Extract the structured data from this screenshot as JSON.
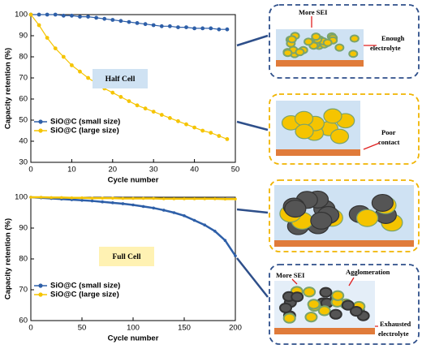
{
  "chart_data": [
    {
      "type": "line",
      "annotation": "Half Cell",
      "annotation_color": "#cfe2f3",
      "x_label": "Cycle number",
      "y_label": "Capacity retention (%)",
      "x": [
        0,
        2,
        4,
        6,
        8,
        10,
        12,
        14,
        16,
        18,
        20,
        22,
        24,
        26,
        28,
        30,
        32,
        34,
        36,
        38,
        40,
        42,
        44,
        46,
        48
      ],
      "series": [
        {
          "name": "SiO@C (small size)",
          "color": "#2e5fa8",
          "values": [
            100,
            100,
            100,
            100,
            99.5,
            99.5,
            99,
            99,
            98.5,
            98,
            97.5,
            97,
            96.5,
            96,
            95.5,
            95,
            94.5,
            94.5,
            94,
            94,
            93.5,
            93.5,
            93.5,
            93,
            93
          ]
        },
        {
          "name": "SiO@C (large size)",
          "color": "#f5c400",
          "values": [
            100,
            95,
            89,
            84,
            80,
            76,
            73,
            70,
            67.5,
            65,
            63,
            61,
            59,
            57,
            55.5,
            54,
            52.5,
            51,
            49.5,
            48,
            46.5,
            45,
            44,
            42.5,
            41
          ]
        }
      ],
      "xlim": [
        0,
        50
      ],
      "xticks": [
        0,
        10,
        20,
        30,
        40,
        50
      ],
      "ylim": [
        30,
        100
      ],
      "yticks": [
        30,
        40,
        50,
        60,
        70,
        80,
        90,
        100
      ]
    },
    {
      "type": "line",
      "annotation": "Full Cell",
      "annotation_color": "#fff2b3",
      "x_label": "Cycle number",
      "y_label": "Capacity retention (%)",
      "x": [
        0,
        10,
        20,
        30,
        40,
        50,
        60,
        70,
        80,
        90,
        100,
        110,
        120,
        130,
        140,
        150,
        160,
        170,
        180,
        190,
        200
      ],
      "series": [
        {
          "name": "SiO@C (small size)",
          "color": "#2e5fa8",
          "values": [
            100,
            99.8,
            99.6,
            99.4,
            99.2,
            99,
            98.8,
            98.5,
            98.2,
            97.9,
            97.5,
            97,
            96.5,
            95.8,
            95,
            94,
            92.5,
            91,
            89,
            86,
            81
          ]
        },
        {
          "name": "SiO@C (large size)",
          "color": "#f5c400",
          "values": [
            100,
            100,
            99.9,
            99.9,
            99.8,
            99.8,
            99.7,
            99.7,
            99.7,
            99.6,
            99.6,
            99.6,
            99.6,
            99.5,
            99.5,
            99.5,
            99.5,
            99.5,
            99.5,
            99.4,
            99.4
          ]
        }
      ],
      "xlim": [
        0,
        200
      ],
      "xticks": [
        0,
        50,
        100,
        150,
        200
      ],
      "ylim": [
        60,
        100
      ],
      "yticks": [
        60,
        70,
        80,
        90,
        100
      ]
    }
  ],
  "diagrams": [
    {
      "labels": [
        "More SEI",
        "Enough",
        "electrolyte"
      ]
    },
    {
      "labels": [
        "Poor",
        "contact"
      ]
    },
    {
      "labels": []
    },
    {
      "labels": [
        "More SEI",
        "Agglomeration",
        "Exhausted",
        "electrolyte"
      ]
    }
  ]
}
